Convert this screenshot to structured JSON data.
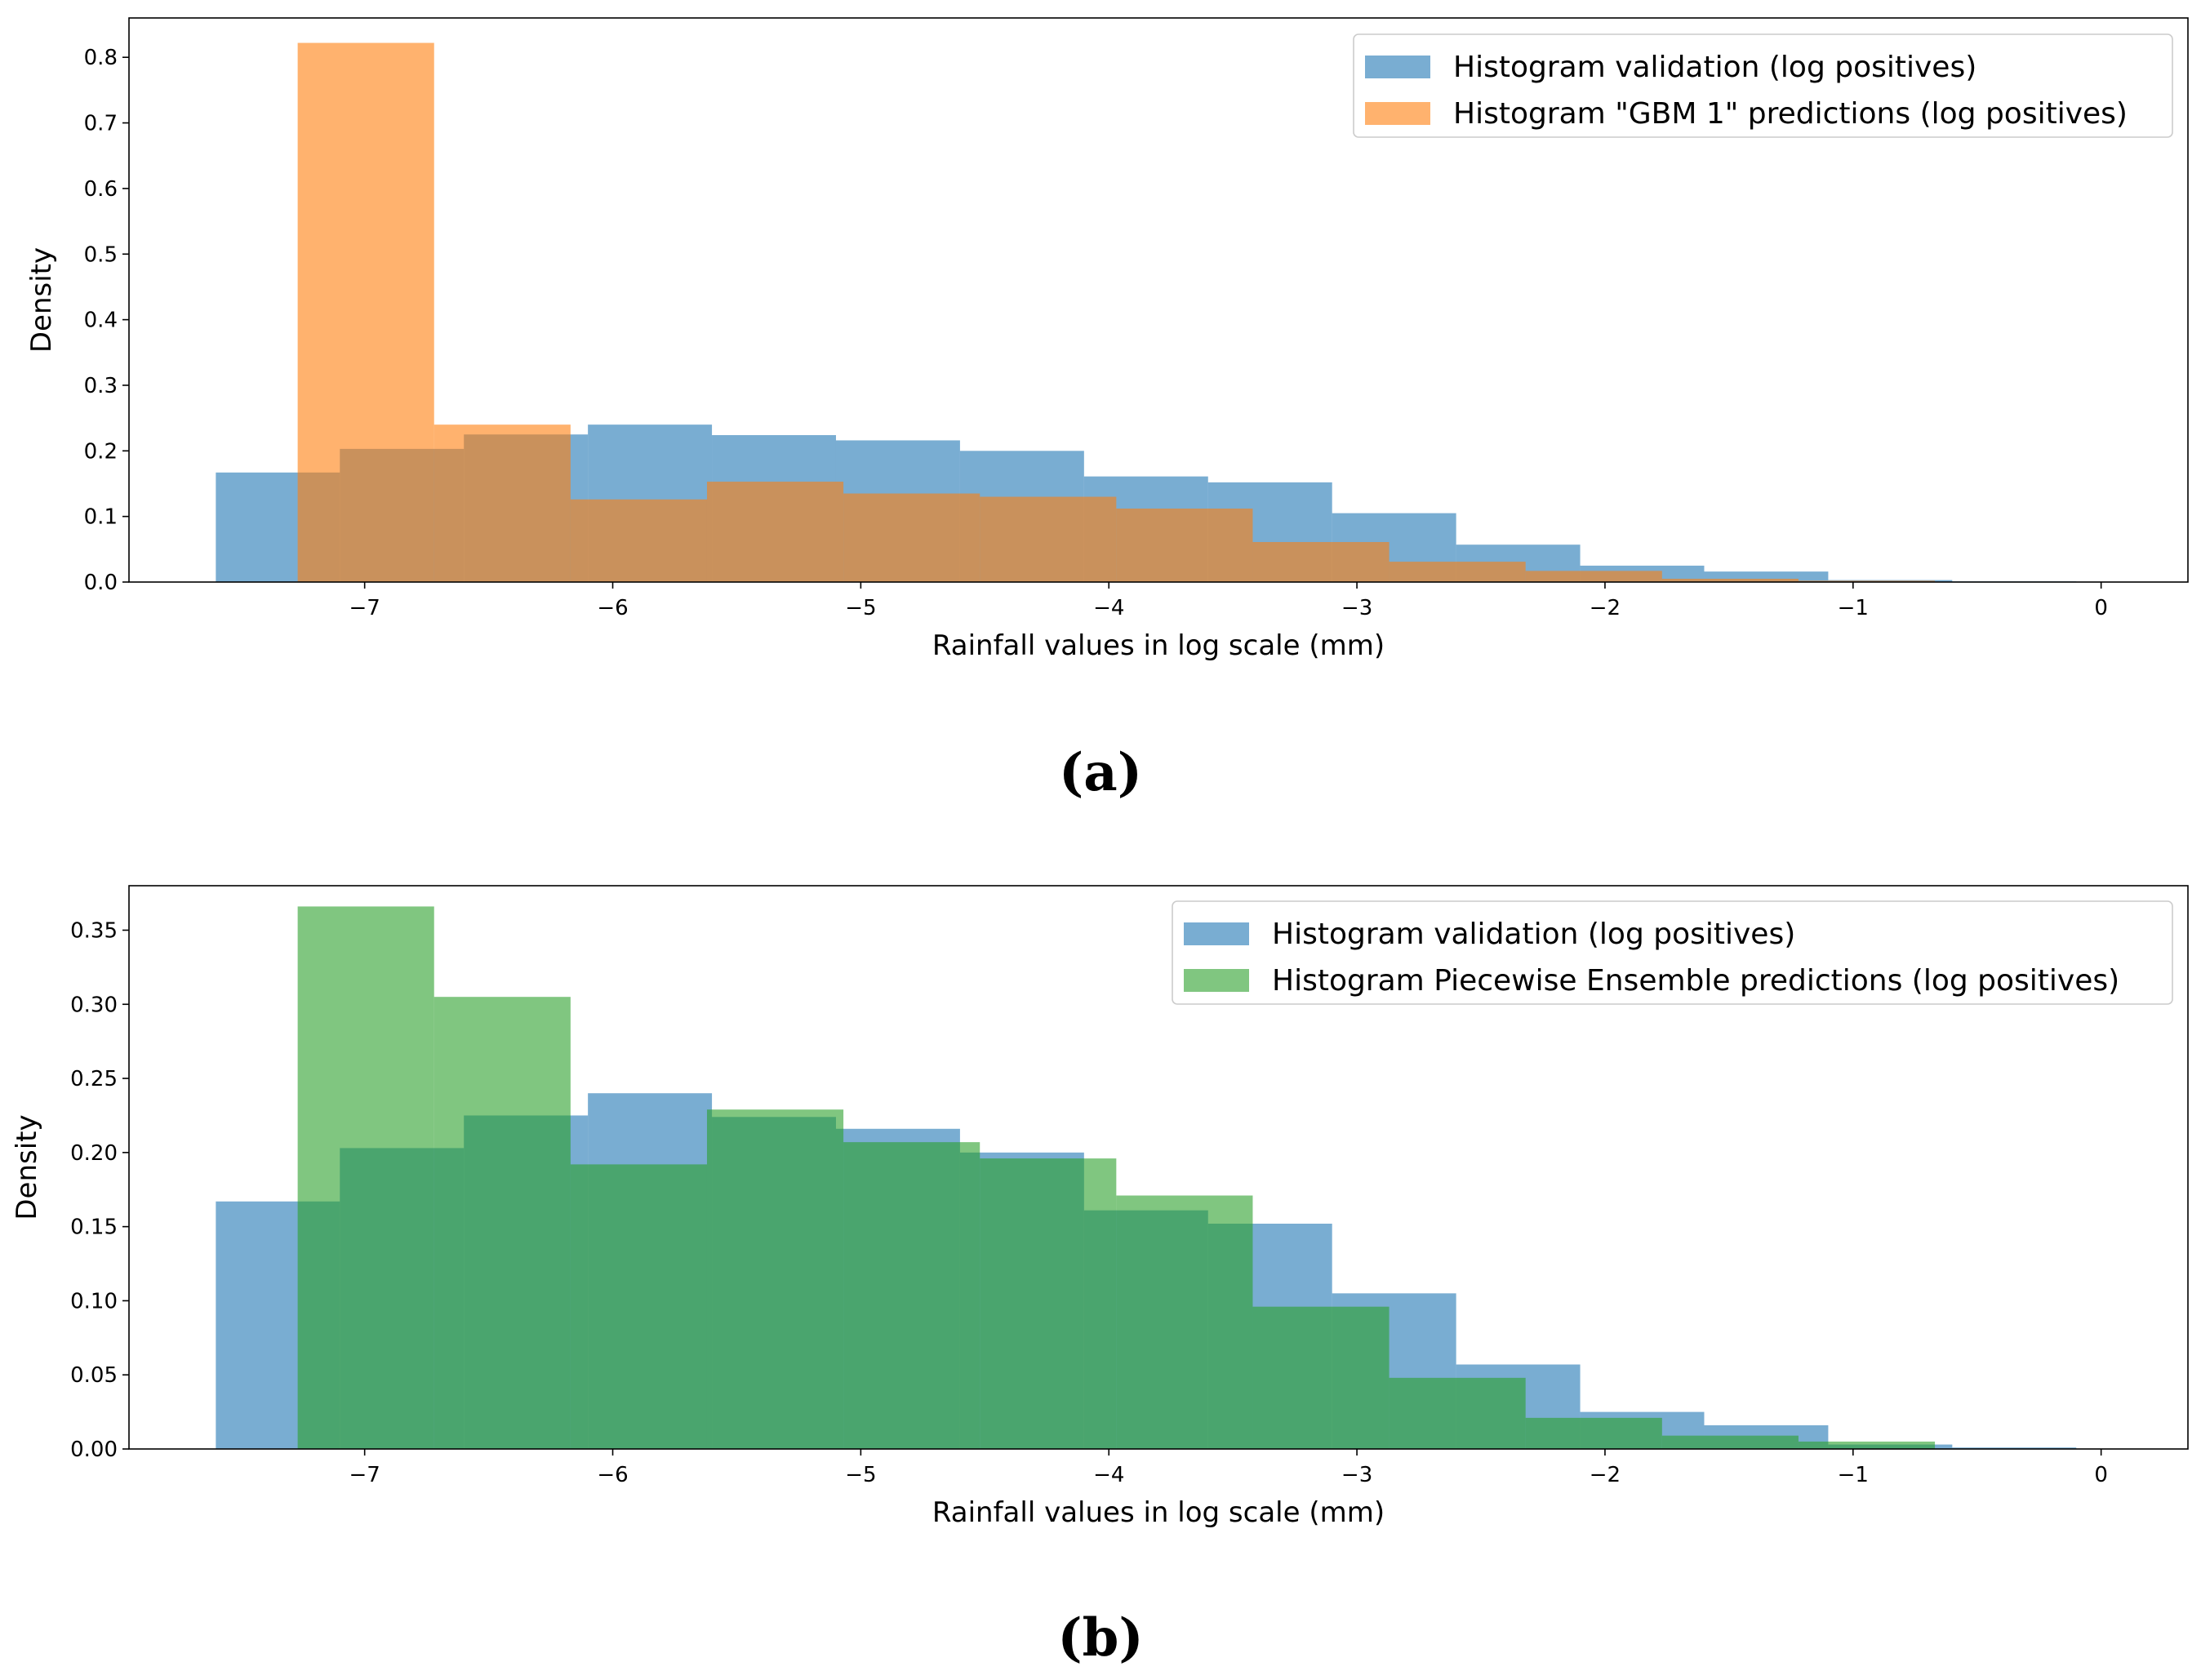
{
  "chart_data": [
    {
      "type": "bar",
      "panel_label": "(a)",
      "xlabel": "Rainfall values in log scale (mm)",
      "ylabel": "Density",
      "xlim": [
        -7.95,
        0.35
      ],
      "ylim": [
        0,
        0.86
      ],
      "xticks": [
        -7,
        -6,
        -5,
        -4,
        -3,
        -2,
        -1,
        0
      ],
      "xtick_labels": [
        "−7",
        "−6",
        "−5",
        "−4",
        "−3",
        "−2",
        "−1",
        "0"
      ],
      "yticks": [
        0.0,
        0.1,
        0.2,
        0.3,
        0.4,
        0.5,
        0.6,
        0.7,
        0.8
      ],
      "ytick_labels": [
        "0.0",
        "0.1",
        "0.2",
        "0.3",
        "0.4",
        "0.5",
        "0.6",
        "0.7",
        "0.8"
      ],
      "legend_position": "top-right",
      "series": [
        {
          "name": "Histogram validation (log positives)",
          "color": "#1f77b4",
          "bin_edges": [
            -7.6,
            -7.1,
            -6.6,
            -6.1,
            -5.6,
            -5.1,
            -4.6,
            -4.1,
            -3.6,
            -3.1,
            -2.6,
            -2.1,
            -1.6,
            -1.1,
            -0.6,
            -0.1
          ],
          "values": [
            0.167,
            0.203,
            0.225,
            0.24,
            0.224,
            0.216,
            0.2,
            0.161,
            0.152,
            0.105,
            0.057,
            0.025,
            0.016,
            0.003,
            0.001
          ]
        },
        {
          "name": "Histogram \"GBM 1\" predictions (log positives)",
          "color": "#ff7f0e",
          "bin_edges": [
            -7.27,
            -6.72,
            -6.17,
            -5.62,
            -5.07,
            -4.52,
            -3.97,
            -3.42,
            -2.87,
            -2.32,
            -1.77,
            -1.22,
            -0.67
          ],
          "values": [
            0.822,
            0.24,
            0.126,
            0.153,
            0.135,
            0.13,
            0.112,
            0.061,
            0.031,
            0.017,
            0.005,
            0.002
          ]
        }
      ]
    },
    {
      "type": "bar",
      "panel_label": "(b)",
      "xlabel": "Rainfall values in log scale (mm)",
      "ylabel": "Density",
      "xlim": [
        -7.95,
        0.35
      ],
      "ylim": [
        0,
        0.38
      ],
      "xticks": [
        -7,
        -6,
        -5,
        -4,
        -3,
        -2,
        -1,
        0
      ],
      "xtick_labels": [
        "−7",
        "−6",
        "−5",
        "−4",
        "−3",
        "−2",
        "−1",
        "0"
      ],
      "yticks": [
        0.0,
        0.05,
        0.1,
        0.15,
        0.2,
        0.25,
        0.3,
        0.35
      ],
      "ytick_labels": [
        "0.00",
        "0.05",
        "0.10",
        "0.15",
        "0.20",
        "0.25",
        "0.30",
        "0.35"
      ],
      "legend_position": "top-right",
      "series": [
        {
          "name": "Histogram validation (log positives)",
          "color": "#1f77b4",
          "bin_edges": [
            -7.6,
            -7.1,
            -6.6,
            -6.1,
            -5.6,
            -5.1,
            -4.6,
            -4.1,
            -3.6,
            -3.1,
            -2.6,
            -2.1,
            -1.6,
            -1.1,
            -0.6,
            -0.1
          ],
          "values": [
            0.167,
            0.203,
            0.225,
            0.24,
            0.224,
            0.216,
            0.2,
            0.161,
            0.152,
            0.105,
            0.057,
            0.025,
            0.016,
            0.003,
            0.001
          ]
        },
        {
          "name": "Histogram Piecewise Ensemble predictions (log positives)",
          "color": "#2ca02c",
          "bin_edges": [
            -7.27,
            -6.72,
            -6.17,
            -5.62,
            -5.07,
            -4.52,
            -3.97,
            -3.42,
            -2.87,
            -2.32,
            -1.77,
            -1.22,
            -0.67
          ],
          "values": [
            0.366,
            0.305,
            0.192,
            0.229,
            0.207,
            0.196,
            0.171,
            0.096,
            0.048,
            0.021,
            0.009,
            0.005
          ]
        }
      ]
    }
  ]
}
